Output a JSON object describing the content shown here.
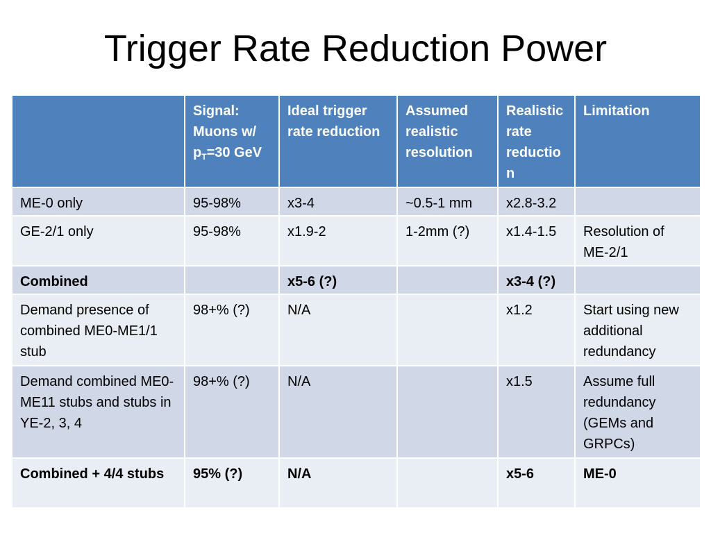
{
  "slide": {
    "title": "Trigger Rate Reduction Power"
  },
  "table": {
    "headers": {
      "c0": "",
      "c1_prefix": "Signal: Muons w/ p",
      "c1_sub": "T",
      "c1_suffix": "=30 GeV",
      "c2": "Ideal trigger rate reduction",
      "c3": "Assumed realistic resolution",
      "c4": "Realistic rate reductio n",
      "c5": "Limitation"
    },
    "rows": [
      {
        "label": "ME-0 only",
        "signal": "95-98%",
        "ideal": "x3-4",
        "resolution": "~0.5-1 mm",
        "realistic": "x2.8-3.2",
        "limitation": ""
      },
      {
        "label": "GE-2/1 only",
        "signal": "95-98%",
        "ideal": "x1.9-2",
        "resolution": "1-2mm (?)",
        "realistic": "x1.4-1.5",
        "limitation": "Resolution of ME-2/1"
      },
      {
        "label": "Combined",
        "signal": "",
        "ideal": "x5-6 (?)",
        "resolution": "",
        "realistic": "x3-4 (?)",
        "limitation": ""
      },
      {
        "label": "Demand presence of combined ME0-ME1/1 stub",
        "signal": "98+% (?)",
        "ideal": "N/A",
        "resolution": "",
        "realistic": "x1.2",
        "limitation": "Start using new additional redundancy"
      },
      {
        "label": "Demand combined ME0-ME11 stubs and stubs in YE-2, 3, 4",
        "signal": "98+% (?)",
        "ideal": "N/A",
        "resolution": "",
        "realistic": "x1.5",
        "limitation": "Assume full redundancy (GEMs and GRPCs)"
      },
      {
        "label": "Combined + 4/4 stubs",
        "signal": "95% (?)",
        "ideal": "N/A",
        "resolution": "",
        "realistic": "x5-6",
        "limitation": "ME-0"
      }
    ]
  },
  "colors": {
    "header_bg": "#4f81bd",
    "row_dark": "#d0d8e8",
    "row_light": "#e9edf4"
  }
}
